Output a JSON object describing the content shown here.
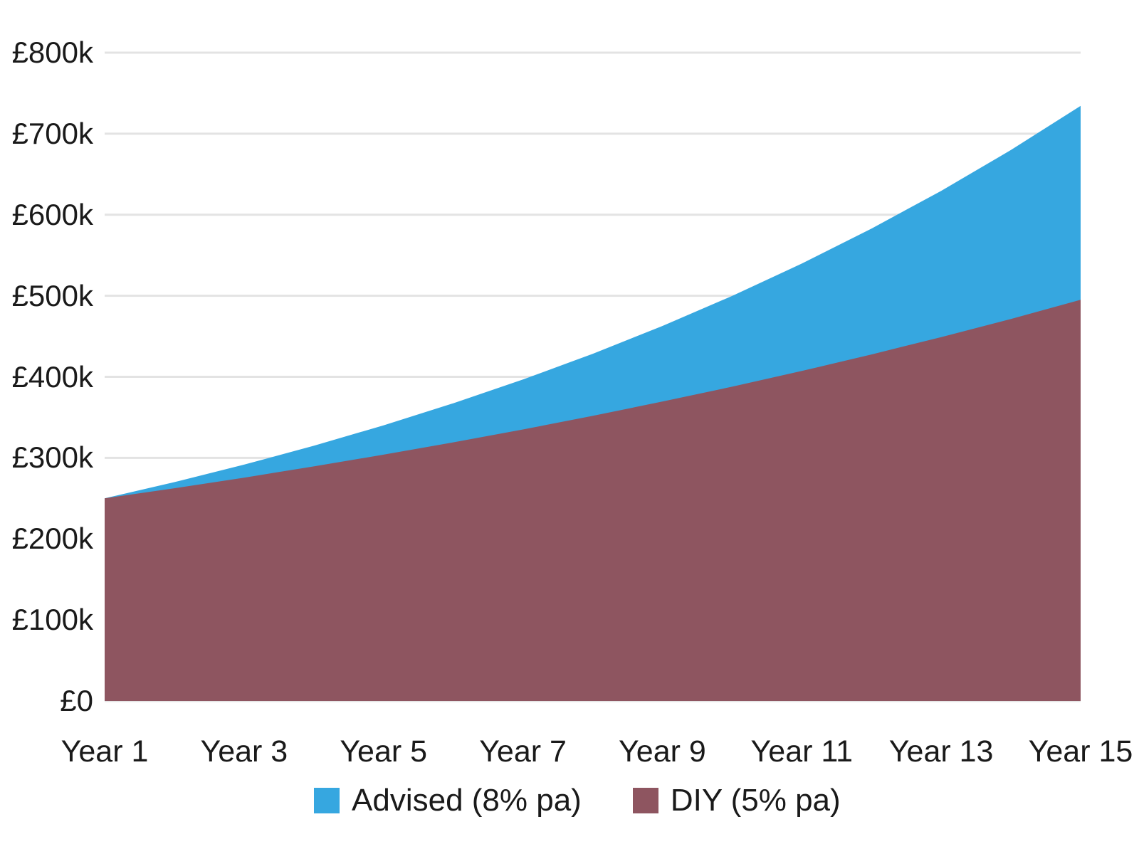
{
  "chart_data": {
    "type": "area",
    "title": "",
    "xlabel": "",
    "ylabel": "",
    "currency": "£",
    "categories": [
      "Year 1",
      "Year 2",
      "Year 3",
      "Year 4",
      "Year 5",
      "Year 6",
      "Year 7",
      "Year 8",
      "Year 9",
      "Year 10",
      "Year 11",
      "Year 12",
      "Year 13",
      "Year 14",
      "Year 15"
    ],
    "series": [
      {
        "name": "Advised (8% pa)",
        "color": "#36a7e0",
        "growth_rate_pa_pct": 8,
        "values_k": [
          250.0,
          270.0,
          291.6,
          314.9,
          340.1,
          367.3,
          396.7,
          428.4,
          462.7,
          499.8,
          539.7,
          582.9,
          629.5,
          679.9,
          734.3
        ]
      },
      {
        "name": "DIY (5% pa)",
        "color": "#8e5560",
        "growth_rate_pa_pct": 5,
        "values_k": [
          250.0,
          262.5,
          275.6,
          289.4,
          303.9,
          319.1,
          335.0,
          351.8,
          369.4,
          387.8,
          407.2,
          427.6,
          449.0,
          471.3,
          495.0
        ]
      }
    ],
    "ylim_k": [
      0,
      800
    ],
    "y_ticks": [
      {
        "value_k": 0,
        "label": "£0"
      },
      {
        "value_k": 100,
        "label": "£100k"
      },
      {
        "value_k": 200,
        "label": "£200k"
      },
      {
        "value_k": 300,
        "label": "£300k"
      },
      {
        "value_k": 400,
        "label": "£400k"
      },
      {
        "value_k": 500,
        "label": "£500k"
      },
      {
        "value_k": 600,
        "label": "£600k"
      },
      {
        "value_k": 700,
        "label": "£700k"
      },
      {
        "value_k": 800,
        "label": "£800k"
      }
    ],
    "x_ticks": [
      {
        "year": 1,
        "label": "Year 1"
      },
      {
        "year": 3,
        "label": "Year 3"
      },
      {
        "year": 5,
        "label": "Year 5"
      },
      {
        "year": 7,
        "label": "Year 7"
      },
      {
        "year": 9,
        "label": "Year 9"
      },
      {
        "year": 11,
        "label": "Year 11"
      },
      {
        "year": 13,
        "label": "Year 13"
      },
      {
        "year": 15,
        "label": "Year 15"
      }
    ],
    "grid": "horizontal",
    "gridline_color": "#e3e3e3",
    "text_color": "#1a1a1a",
    "background_color": "#ffffff",
    "legend_position": "bottom"
  }
}
